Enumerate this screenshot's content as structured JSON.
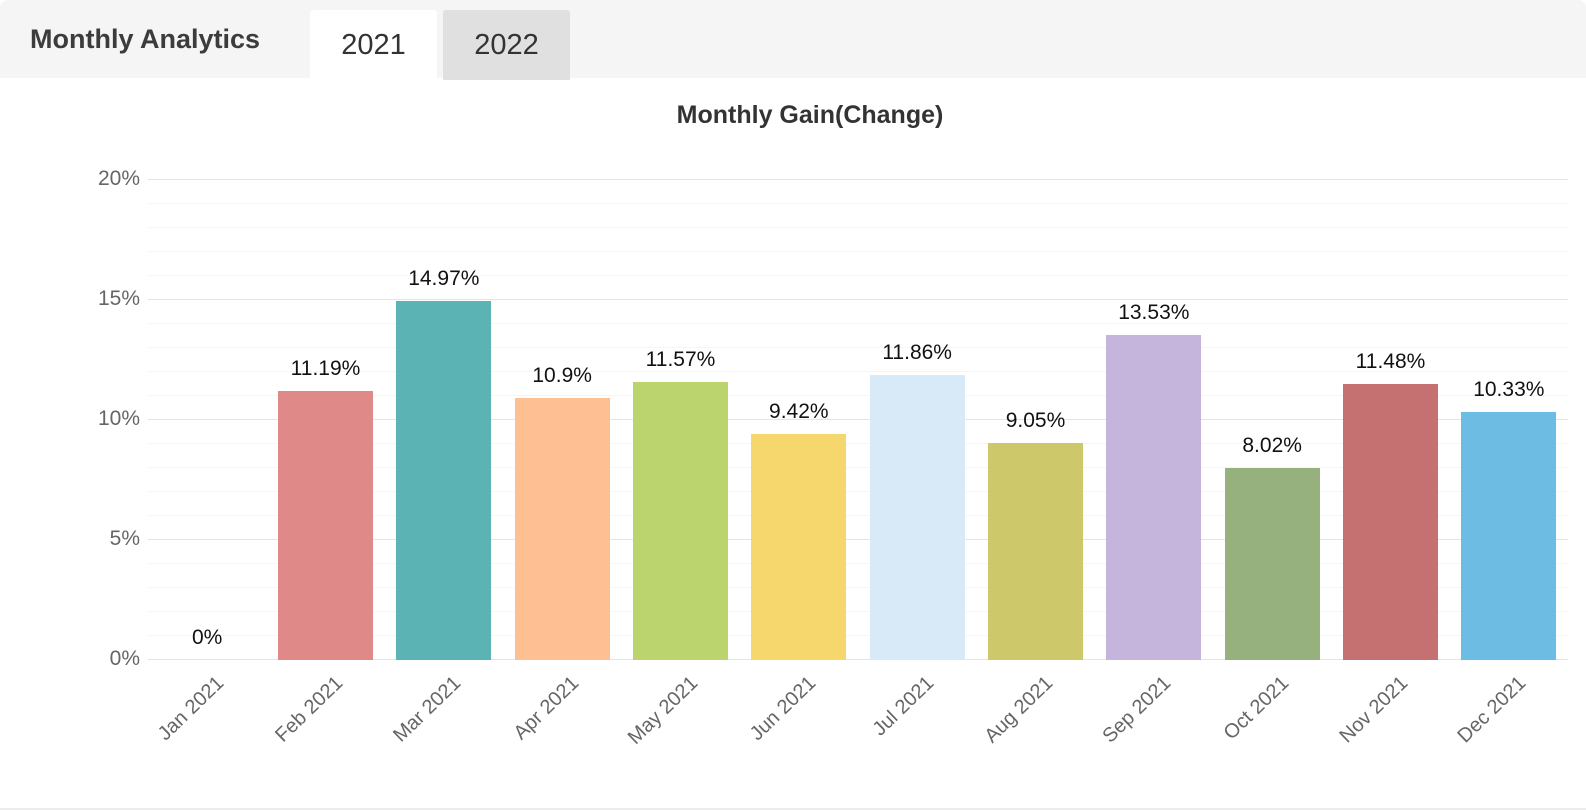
{
  "header": {
    "title": "Monthly Analytics",
    "tabs": [
      {
        "label": "2021",
        "active": true
      },
      {
        "label": "2022",
        "active": false
      }
    ]
  },
  "chart_data": {
    "type": "bar",
    "title": "Monthly Gain(Change)",
    "categories": [
      "Jan 2021",
      "Feb 2021",
      "Mar 2021",
      "Apr 2021",
      "May 2021",
      "Jun 2021",
      "Jul 2021",
      "Aug 2021",
      "Sep 2021",
      "Oct 2021",
      "Nov 2021",
      "Dec 2021"
    ],
    "values": [
      0,
      11.19,
      14.97,
      10.9,
      11.57,
      9.42,
      11.86,
      9.05,
      13.53,
      8.02,
      11.48,
      10.33
    ],
    "value_labels": [
      "0%",
      "11.19%",
      "14.97%",
      "10.9%",
      "11.57%",
      "9.42%",
      "11.86%",
      "9.05%",
      "13.53%",
      "8.02%",
      "11.48%",
      "10.33%"
    ],
    "bar_colors": [
      null,
      "#e08989",
      "#5bb3b3",
      "#fec092",
      "#bcd46e",
      "#f5d76e",
      "#d8eaf8",
      "#cdc96b",
      "#c5b5dc",
      "#97b17e",
      "#c57071",
      "#6cbce3"
    ],
    "xlabel": "",
    "ylabel": "",
    "ylim": [
      0,
      20
    ],
    "ytick_labels": [
      "0%",
      "5%",
      "10%",
      "15%",
      "20%"
    ],
    "ytick_major_step": 5,
    "ytick_minor_step": 1,
    "grid": true,
    "legend": false
  },
  "style": {
    "header_bg": "#f5f5f5",
    "tab_active_bg": "#ffffff",
    "tab_inactive_bg": "#e0e0e0",
    "major_grid": "#e4e4e4",
    "minor_grid": "#f6f6f6",
    "axis_text": "#666666",
    "value_text": "#111111",
    "title_text": "#333333"
  }
}
